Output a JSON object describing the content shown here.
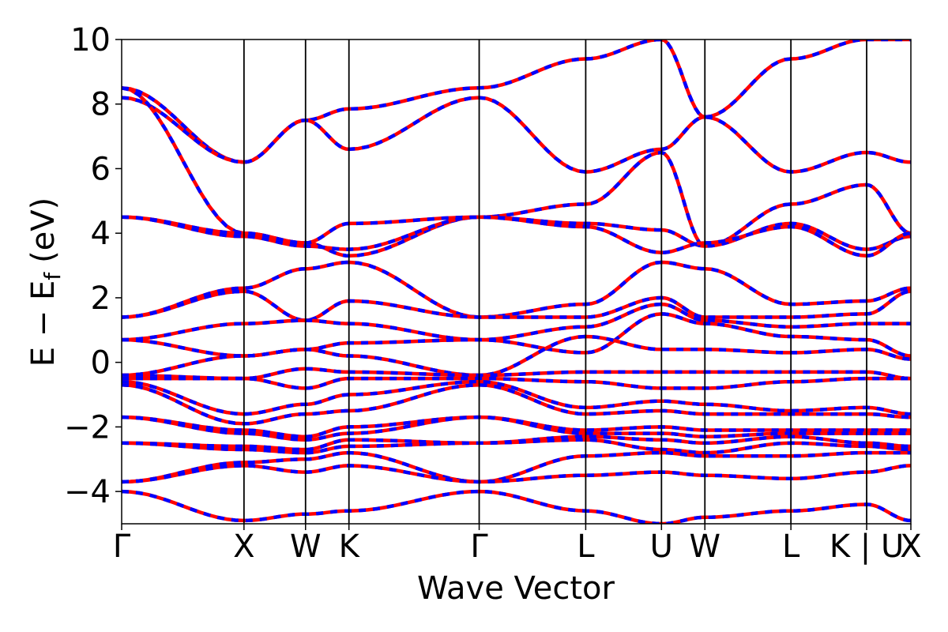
{
  "chart_data": {
    "type": "line",
    "xlabel": "Wave Vector",
    "ylabel": "E − E",
    "ylabel_subscript": "f",
    "ylabel_unit": "(eV)",
    "ylim": [
      -5,
      10
    ],
    "yticks": [
      -4,
      -2,
      0,
      2,
      4,
      6,
      8,
      10
    ],
    "ytick_labels": [
      "−4",
      "−2",
      "0",
      "2",
      "4",
      "6",
      "8",
      "10"
    ],
    "high_symmetry_points": [
      {
        "label": "Γ",
        "k": 0.0
      },
      {
        "label": "X",
        "k": 0.155
      },
      {
        "label": "W",
        "k": 0.233
      },
      {
        "label": "K",
        "k": 0.288
      },
      {
        "label": "Γ",
        "k": 0.453
      },
      {
        "label": "L",
        "k": 0.588
      },
      {
        "label": "U",
        "k": 0.684
      },
      {
        "label": "W",
        "k": 0.739
      },
      {
        "label": "L",
        "k": 0.848
      },
      {
        "label": "K | U",
        "k": 0.944
      },
      {
        "label": "X",
        "k": 1.0
      }
    ],
    "colors": {
      "red": "#ff0000",
      "blue": "#0000ff"
    },
    "series": [
      {
        "values": [
          8.5,
          6.2,
          7.5,
          7.85,
          8.5,
          9.4,
          10.0,
          7.6,
          9.4,
          10.0,
          10.0
        ]
      },
      {
        "values": [
          8.2,
          6.2,
          7.5,
          6.6,
          8.2,
          5.9,
          6.6,
          7.6,
          5.9,
          6.5,
          6.2
        ]
      },
      {
        "values": [
          8.5,
          4.0,
          3.7,
          3.3,
          4.5,
          4.9,
          6.5,
          3.6,
          4.9,
          5.5,
          4.0
        ]
      },
      {
        "values": [
          4.5,
          4.0,
          3.7,
          4.3,
          4.5,
          4.3,
          4.1,
          3.6,
          4.3,
          3.5,
          3.9
        ]
      },
      {
        "values": [
          4.5,
          3.9,
          3.6,
          3.5,
          4.5,
          4.2,
          3.4,
          3.7,
          4.2,
          3.3,
          4.0
        ]
      },
      {
        "values": [
          1.4,
          2.3,
          2.9,
          3.1,
          1.4,
          1.8,
          3.1,
          2.9,
          1.8,
          1.9,
          2.3
        ]
      },
      {
        "values": [
          1.4,
          2.2,
          1.3,
          1.9,
          1.4,
          1.4,
          2.0,
          1.4,
          1.4,
          1.5,
          2.2
        ]
      },
      {
        "values": [
          0.7,
          1.2,
          1.3,
          1.2,
          0.7,
          1.1,
          1.8,
          1.3,
          1.1,
          1.2,
          1.2
        ]
      },
      {
        "values": [
          0.7,
          0.2,
          0.4,
          0.6,
          0.7,
          0.3,
          1.5,
          1.2,
          0.8,
          0.7,
          0.2
        ]
      },
      {
        "values": [
          -0.4,
          0.2,
          0.4,
          0.2,
          -0.4,
          0.8,
          0.4,
          0.4,
          0.3,
          0.4,
          0.1
        ]
      },
      {
        "values": [
          -0.4,
          -0.5,
          -0.2,
          -0.3,
          -0.4,
          -0.3,
          -0.3,
          -0.3,
          -0.3,
          -0.3,
          -0.5
        ]
      },
      {
        "values": [
          -0.5,
          -0.5,
          -0.8,
          -0.5,
          -0.5,
          -0.6,
          -0.8,
          -0.8,
          -0.6,
          -0.5,
          -0.5
        ]
      },
      {
        "values": [
          -0.6,
          -1.6,
          -1.3,
          -1.0,
          -0.6,
          -1.4,
          -1.2,
          -1.3,
          -1.5,
          -1.4,
          -1.6
        ]
      },
      {
        "values": [
          -0.7,
          -1.9,
          -1.6,
          -1.5,
          -0.7,
          -1.6,
          -1.5,
          -1.6,
          -1.6,
          -1.6,
          -1.7
        ]
      },
      {
        "values": [
          -1.7,
          -2.1,
          -2.3,
          -2.0,
          -1.7,
          -2.1,
          -2.0,
          -2.1,
          -2.1,
          -2.1,
          -2.1
        ]
      },
      {
        "values": [
          -1.7,
          -2.2,
          -2.4,
          -2.2,
          -1.7,
          -2.2,
          -2.2,
          -2.3,
          -2.2,
          -2.2,
          -2.2
        ]
      },
      {
        "values": [
          -2.5,
          -2.6,
          -2.7,
          -2.4,
          -2.5,
          -2.3,
          -2.4,
          -2.5,
          -2.3,
          -2.5,
          -2.6
        ]
      },
      {
        "values": [
          -2.5,
          -2.7,
          -2.8,
          -2.6,
          -2.5,
          -2.4,
          -2.7,
          -2.8,
          -2.5,
          -2.6,
          -2.7
        ]
      },
      {
        "values": [
          -3.7,
          -3.1,
          -3.0,
          -2.8,
          -3.7,
          -2.9,
          -2.8,
          -2.9,
          -2.9,
          -2.8,
          -2.8
        ]
      },
      {
        "values": [
          -3.7,
          -3.2,
          -3.4,
          -3.2,
          -3.7,
          -3.5,
          -3.4,
          -3.5,
          -3.6,
          -3.4,
          -3.2
        ]
      },
      {
        "values": [
          -4.0,
          -4.9,
          -4.7,
          -4.6,
          -4.0,
          -4.6,
          -5.0,
          -4.8,
          -4.6,
          -4.4,
          -4.9
        ]
      }
    ]
  }
}
